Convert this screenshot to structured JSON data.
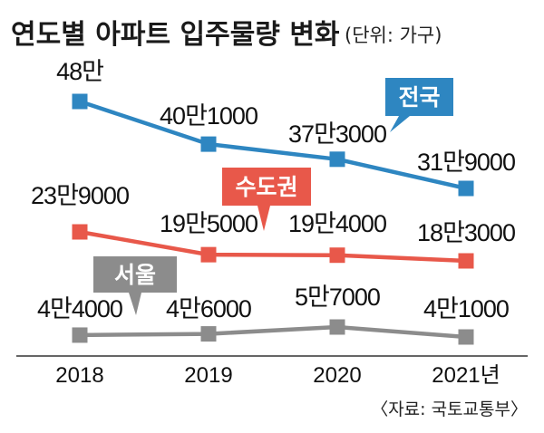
{
  "chart_data": {
    "type": "line",
    "title": "연도별 아파트 입주물량 변화",
    "unit": "(단위: 가구)",
    "source": "〈자료: 국토교통부〉",
    "categories": [
      "2018",
      "2019",
      "2020",
      "2021년"
    ],
    "series": [
      {
        "name": "전국",
        "color": "#2e86c1",
        "values": [
          480000,
          401000,
          373000,
          319000
        ],
        "labels": [
          "48만",
          "40만1000",
          "37만3000",
          "31만9000"
        ]
      },
      {
        "name": "수도권",
        "color": "#e8584a",
        "values": [
          239000,
          195000,
          194000,
          183000
        ],
        "labels": [
          "23만9000",
          "19만5000",
          "19만4000",
          "18만3000"
        ]
      },
      {
        "name": "서울",
        "color": "#8c8c8c",
        "values": [
          44000,
          46000,
          57000,
          41000
        ],
        "labels": [
          "4만4000",
          "4만6000",
          "5만7000",
          "4만1000"
        ]
      }
    ]
  }
}
